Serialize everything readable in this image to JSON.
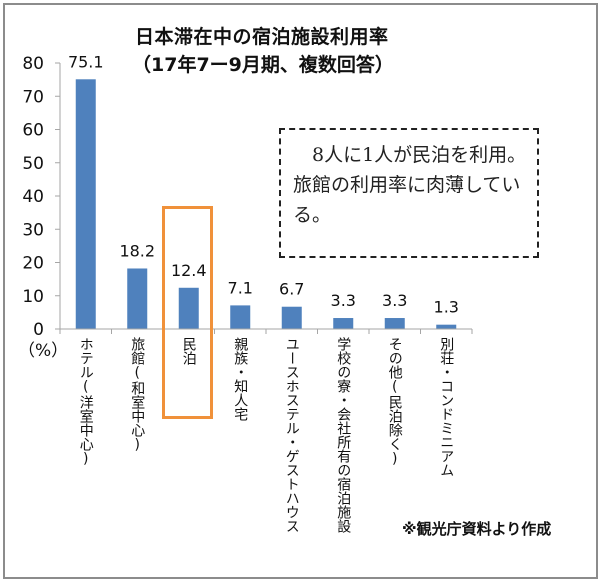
{
  "chart_data": {
    "type": "bar",
    "title": "日本滞在中の宿泊施設利用率",
    "subtitle": "（17年7ー9月期、複数回答）",
    "ylabel": "（%）",
    "xlabel": "",
    "ylim": [
      0,
      80
    ],
    "yticks": [
      "0",
      "10",
      "20",
      "30",
      "40",
      "50",
      "60",
      "70",
      "80"
    ],
    "categories": [
      "ホテル(洋室中心)",
      "旅館(和室中心)",
      "民泊",
      "親族・知人宅",
      "ユースホステル・ゲストハウス",
      "学校の寮・会社所有の宿泊施設",
      "その他(民泊除く)",
      "別荘・コンドミニアム"
    ],
    "values": [
      75.1,
      18.2,
      12.4,
      7.1,
      6.7,
      3.3,
      3.3,
      1.3
    ],
    "data_labels": [
      "75.1",
      "18.2",
      "12.4",
      "7.1",
      "6.7",
      "3.3",
      "3.3",
      "1.3"
    ],
    "highlighted_category": "民泊",
    "grid": false,
    "legend": "none",
    "annotation": "8人に1人が民泊を利用。旅館の利用率に肉薄している。",
    "source_note": "※観光庁資料より作成",
    "colors": {
      "bar": "#4f81bd",
      "highlight": "#f0913a",
      "axis": "#a6a6a6"
    }
  }
}
